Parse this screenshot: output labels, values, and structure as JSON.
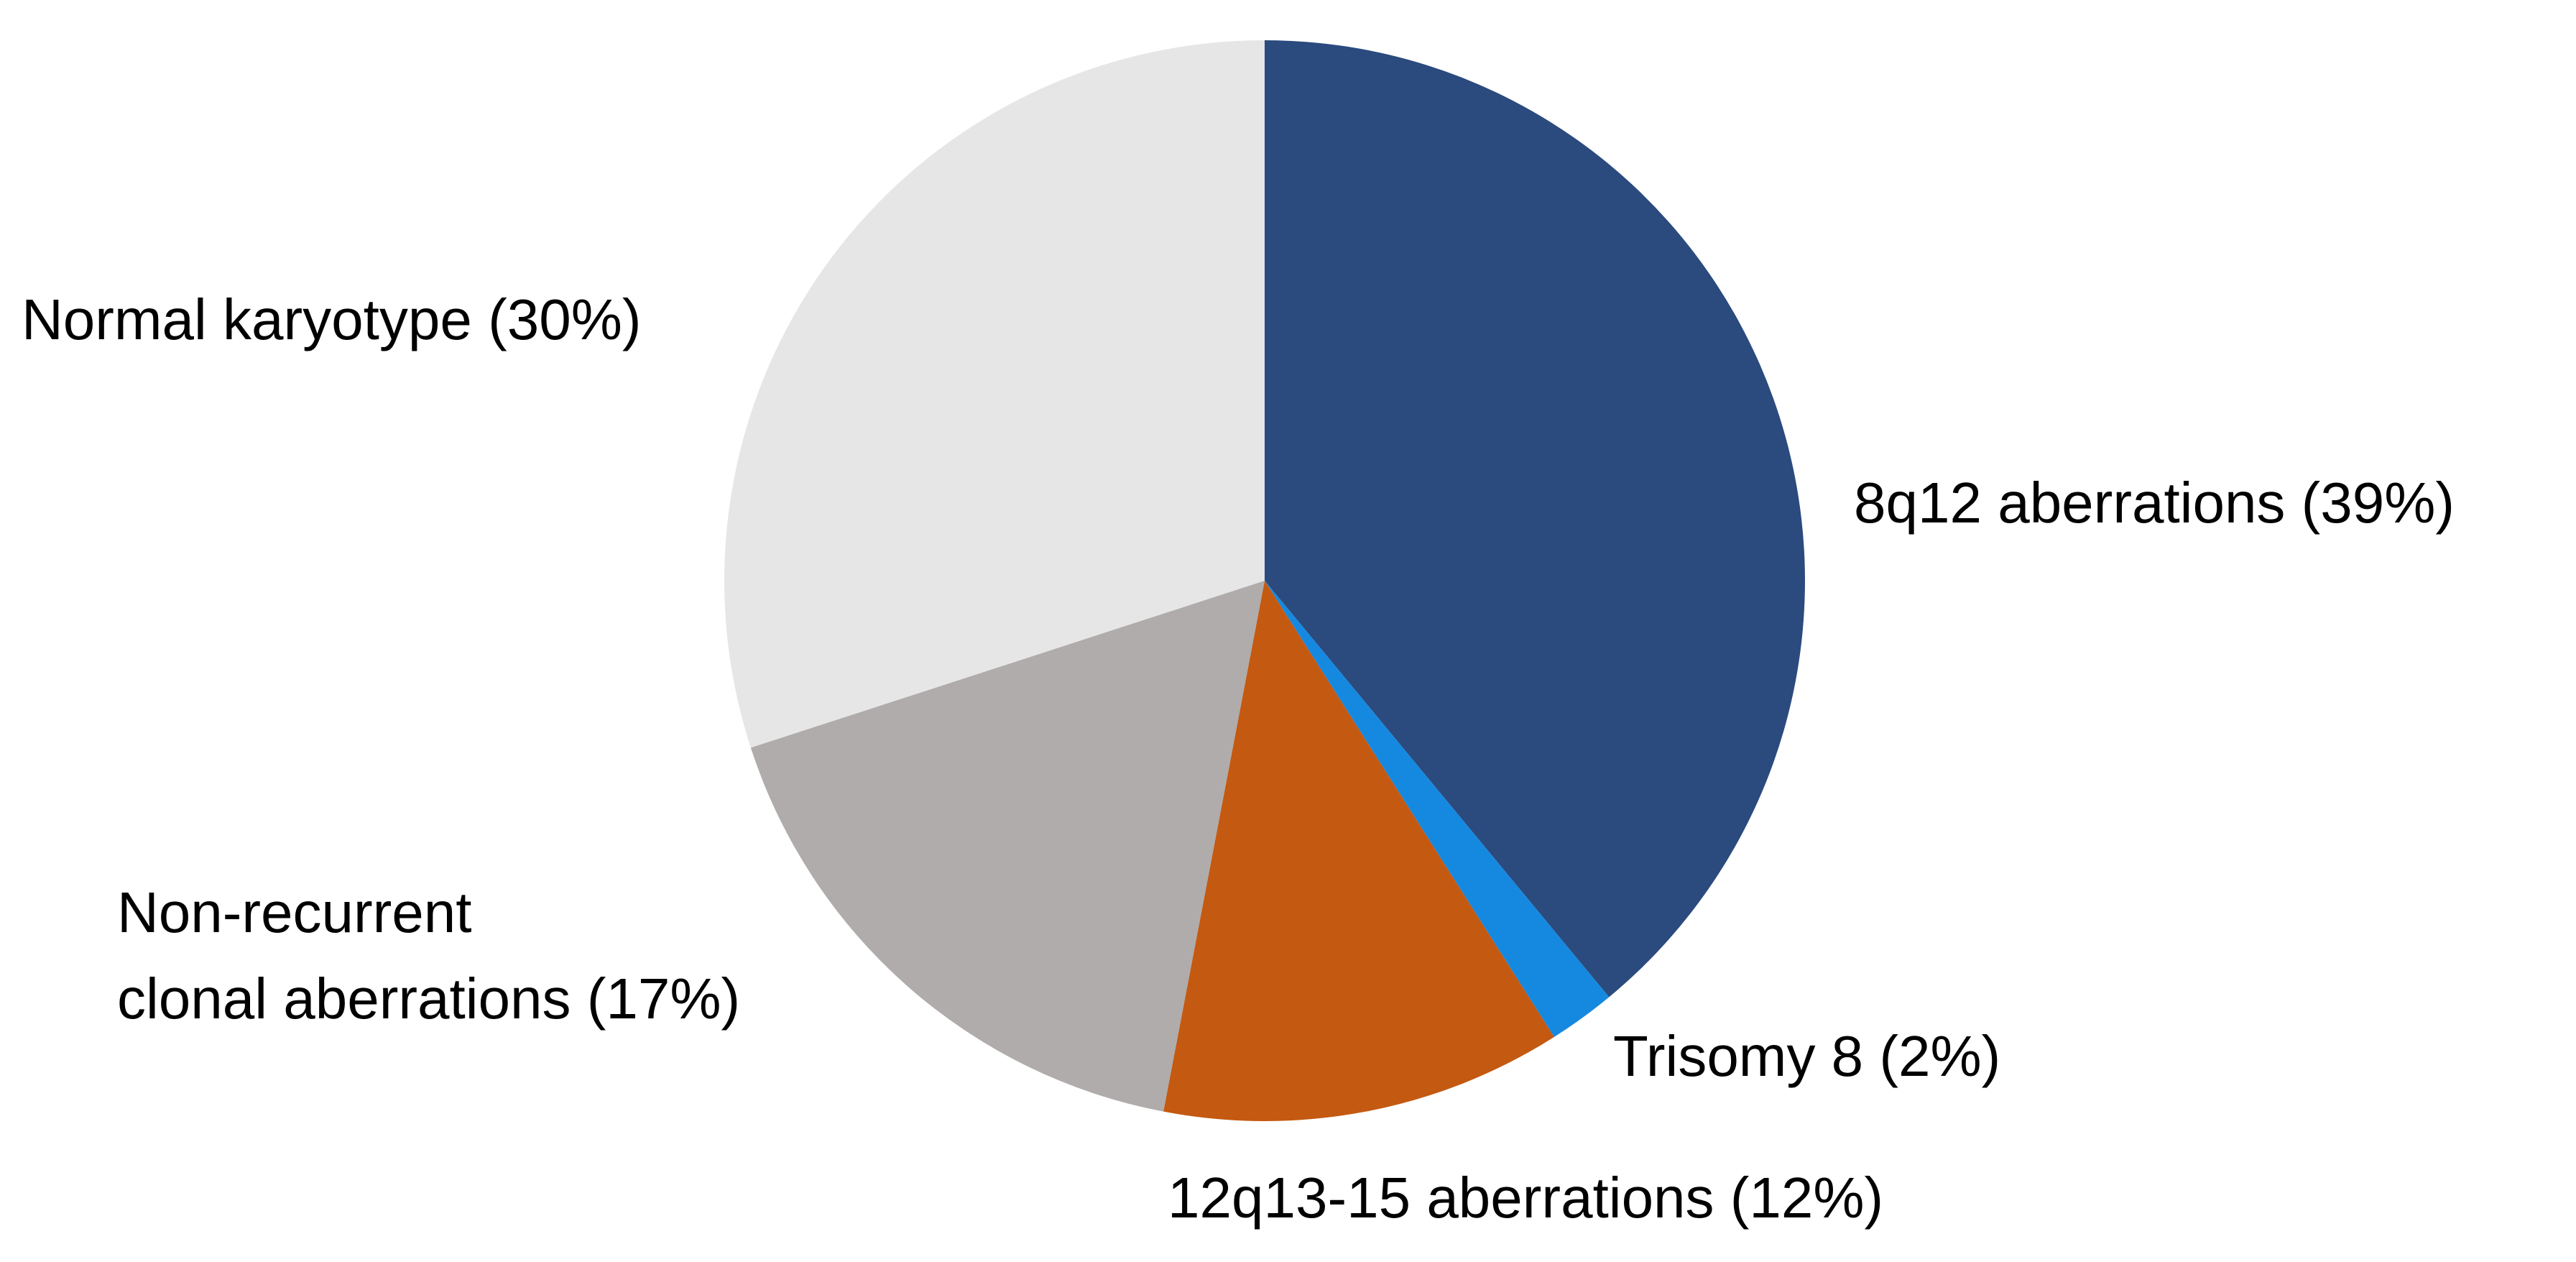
{
  "chart_data": {
    "type": "pie",
    "start_angle_deg": 0,
    "direction": "clockwise",
    "slices": [
      {
        "key": "8q12",
        "label": "8q12 aberrations (39%)",
        "value": 39,
        "color": "#2B4A7E"
      },
      {
        "key": "trisomy8",
        "label": "Trisomy 8 (2%)",
        "value": 2,
        "color": "#1589E0"
      },
      {
        "key": "12q13",
        "label": "12q13-15 aberrations (12%)",
        "value": 12,
        "color": "#C45911"
      },
      {
        "key": "nonrecurrent",
        "label_lines": [
          "Non-recurrent",
          "clonal aberrations (17%)"
        ],
        "value": 17,
        "color": "#AFACAB"
      },
      {
        "key": "normal",
        "label": "Normal karyotype (30%)",
        "value": 30,
        "color": "#E6E6E6"
      }
    ]
  }
}
